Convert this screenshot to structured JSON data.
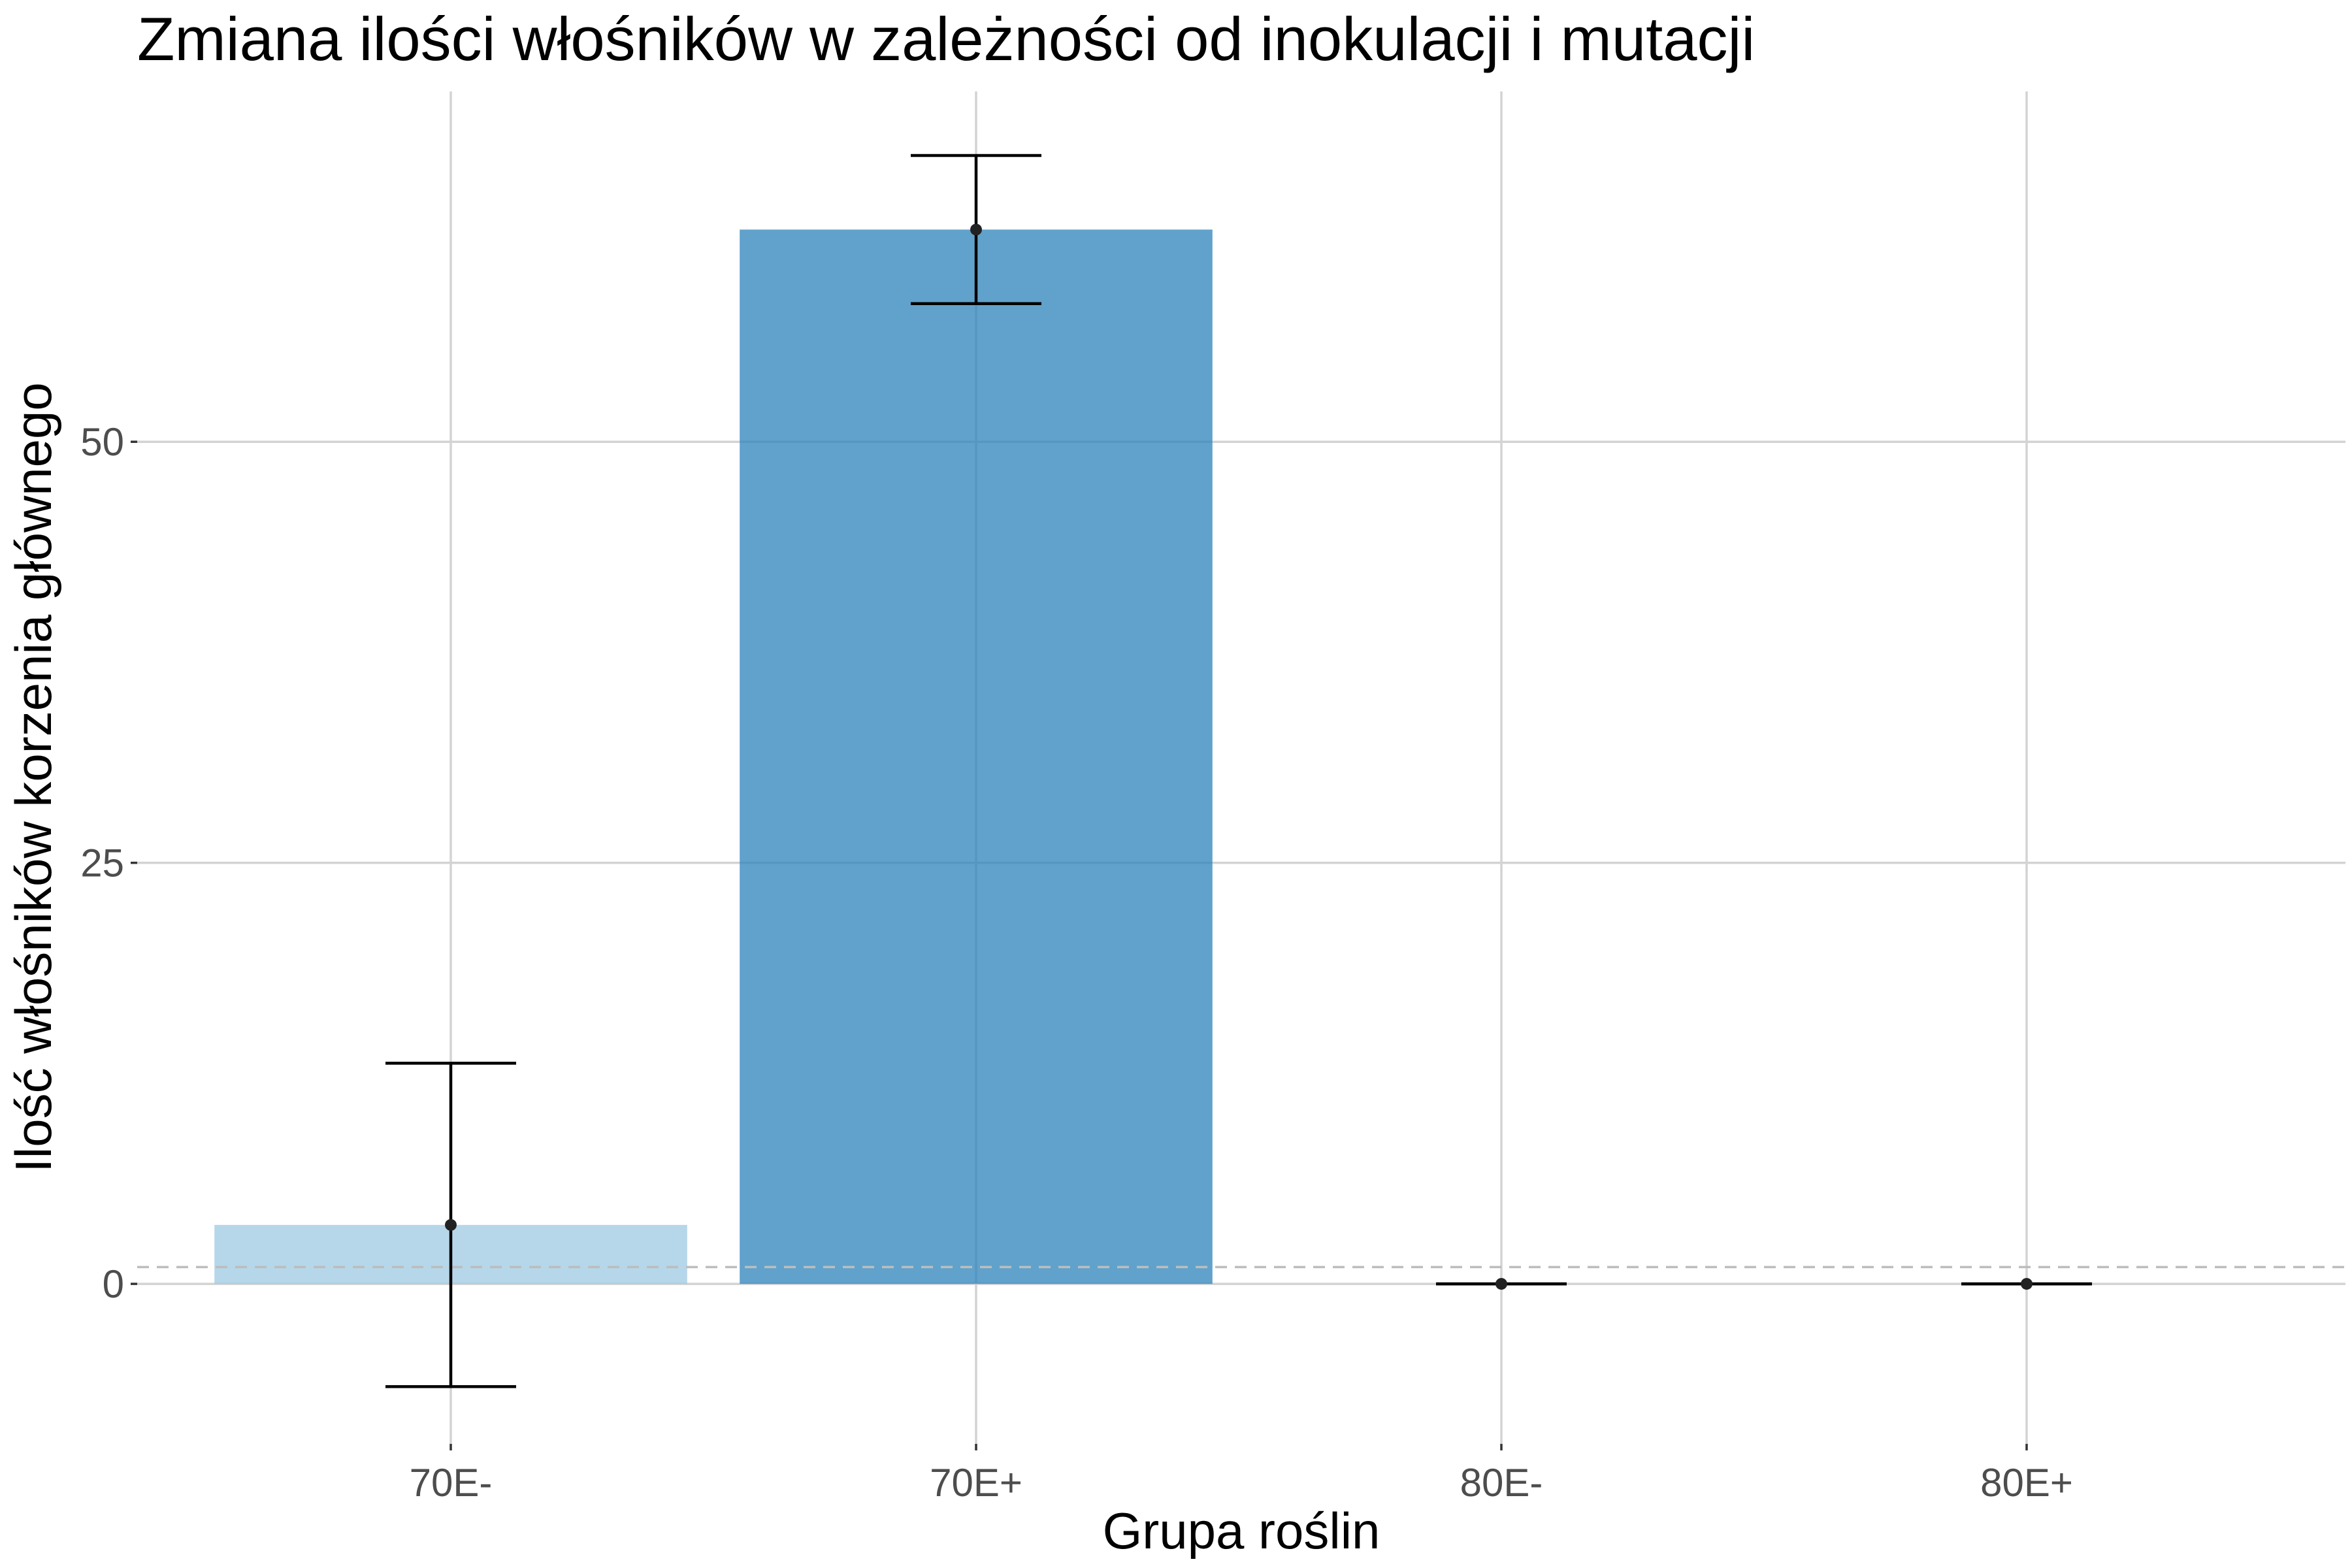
{
  "chart_data": {
    "type": "bar",
    "title": "Zmiana ilości włośników w zależności od inokulacji i mutacji",
    "xlabel": "Grupa roślin",
    "ylabel": "Ilość włośników korzenia głównego",
    "categories": [
      "70E-",
      "70E+",
      "80E-",
      "80E+"
    ],
    "values": [
      3.5,
      62.6,
      0,
      0
    ],
    "error_low": [
      -6.1,
      58.2,
      0,
      0
    ],
    "error_high": [
      13.1,
      67.0,
      0,
      0
    ],
    "bar_colors": [
      "#9ecae1",
      "#2b83ba",
      "#9ecae1",
      "#2b83ba"
    ],
    "bar_opacity": 0.75,
    "point_color": "#222222",
    "reference_line": 1,
    "reference_line_color": "#bdbdbd",
    "ylim": [
      -9.5,
      70.8
    ],
    "yticks": [
      0,
      25,
      50
    ],
    "grid": true,
    "legend": "none"
  }
}
